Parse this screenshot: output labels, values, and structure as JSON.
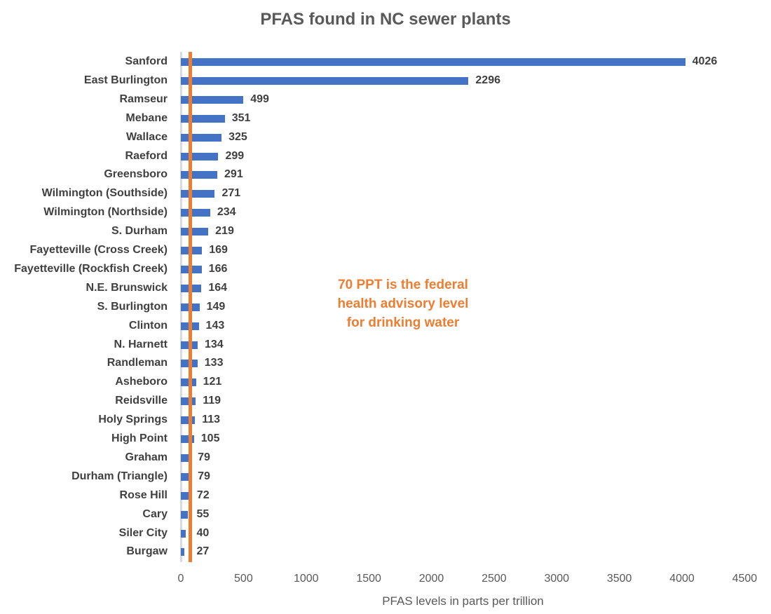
{
  "chart_data": {
    "type": "bar",
    "orientation": "horizontal",
    "title": "PFAS found in NC sewer plants",
    "xlabel": "PFAS levels in parts per trillion",
    "ylabel": "",
    "xlim": [
      0,
      4500
    ],
    "x_ticks": [
      0,
      500,
      1000,
      1500,
      2000,
      2500,
      3000,
      3500,
      4000,
      4500
    ],
    "grid": false,
    "legend": null,
    "bar_color": "#4472c4",
    "categories": [
      "Sanford",
      "East Burlington",
      "Ramseur",
      "Mebane",
      "Wallace",
      "Raeford",
      "Greensboro",
      "Wilmington (Southside)",
      "Wilmington (Northside)",
      "S. Durham",
      "Fayetteville (Cross Creek)",
      "Fayetteville (Rockfish Creek)",
      "N.E. Brunswick",
      "S. Burlington",
      "Clinton",
      "N. Harnett",
      "Randleman",
      "Asheboro",
      "Reidsville",
      "Holy Springs",
      "High Point",
      "Graham",
      "Durham (Triangle)",
      "Rose Hill",
      "Cary",
      "Siler City",
      "Burgaw"
    ],
    "values": [
      4026,
      2296,
      499,
      351,
      325,
      299,
      291,
      271,
      234,
      219,
      169,
      166,
      164,
      149,
      143,
      134,
      133,
      121,
      119,
      113,
      105,
      79,
      79,
      72,
      55,
      40,
      27
    ],
    "reference_line": {
      "value": 70,
      "color": "#ed7d31",
      "orientation": "vertical"
    },
    "annotations": [
      {
        "text": "70 PPT is the federal health advisory level for drinking water",
        "color": "#ed7d31",
        "lines": [
          "70 PPT is the federal",
          "health advisory level",
          "for drinking water"
        ]
      }
    ]
  }
}
